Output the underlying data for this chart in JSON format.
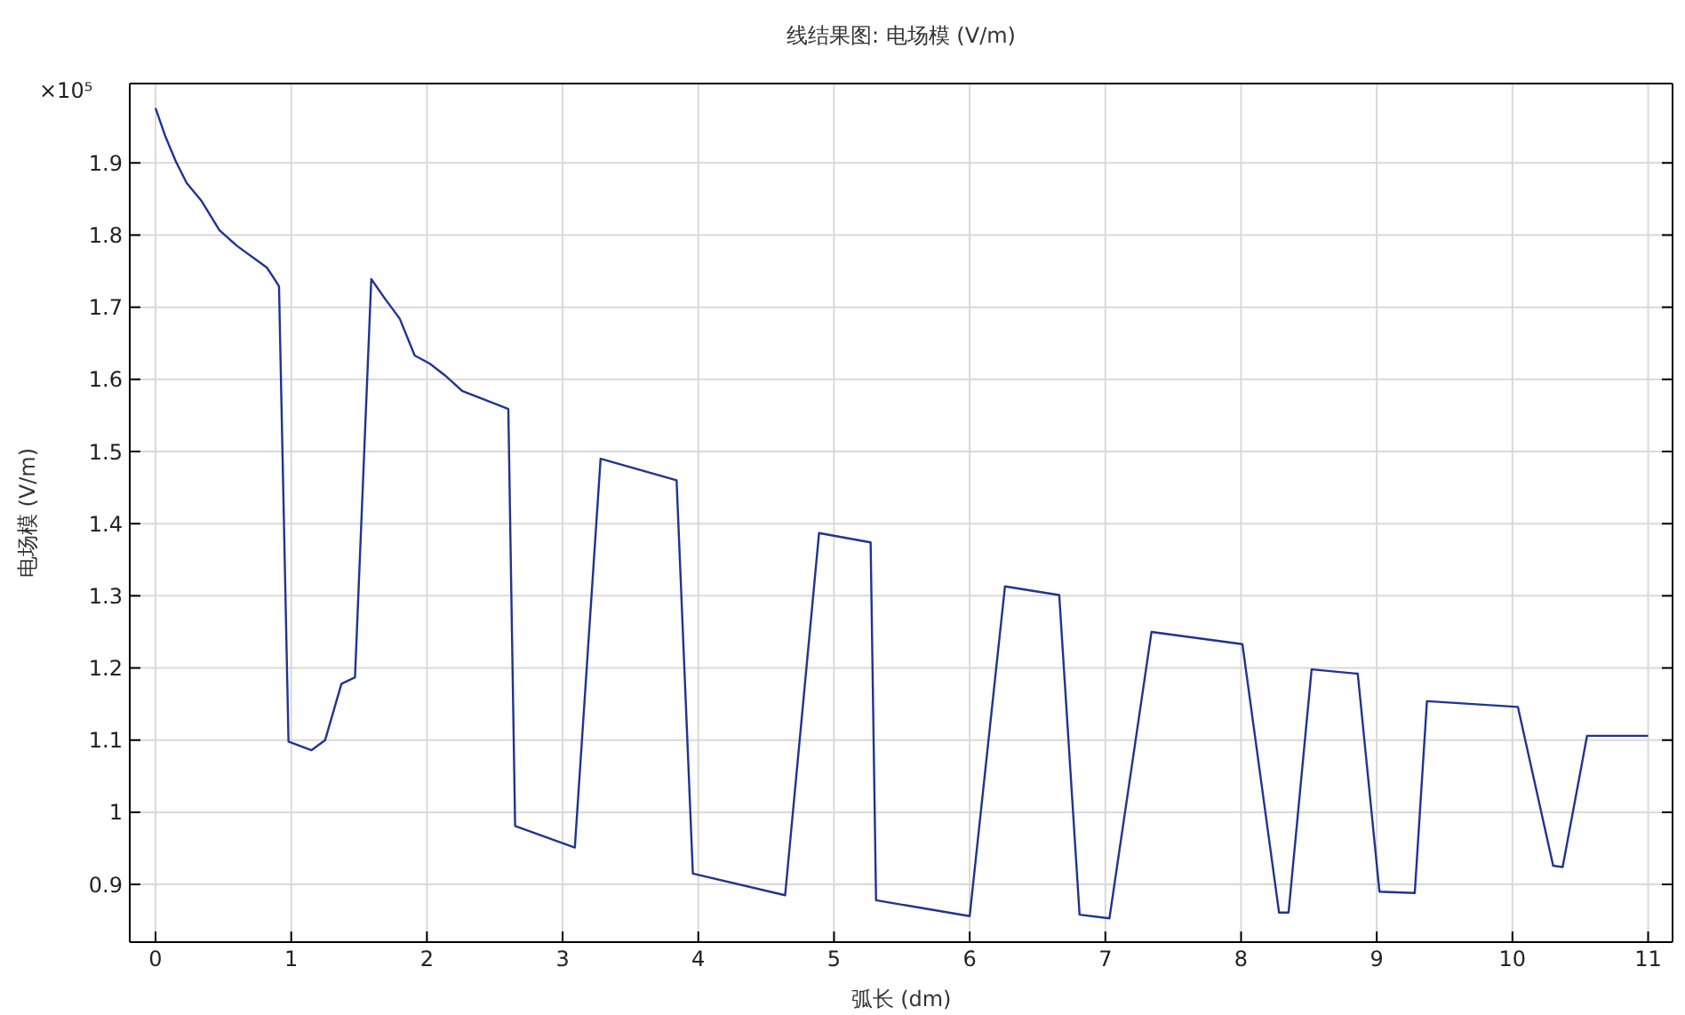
{
  "chart_data": {
    "type": "line",
    "title": "线结果图: 电场模 (V/m)",
    "xlabel": "弧长 (dm)",
    "ylabel": "电场模 (V/m)",
    "annotations": [
      "×10⁵"
    ],
    "x": [
      0,
      0.07,
      0.15,
      0.23,
      0.34,
      0.47,
      0.6,
      0.82,
      0.87,
      0.91,
      0.98,
      1.15,
      1.25,
      1.37,
      1.47,
      1.59,
      1.69,
      1.8,
      1.91,
      2.02,
      2.13,
      2.26,
      2.6,
      2.65,
      3.09,
      3.28,
      3.84,
      3.96,
      4.64,
      4.89,
      5.27,
      5.31,
      6.0,
      6.26,
      6.66,
      6.81,
      7.03,
      7.34,
      8.01,
      8.28,
      8.35,
      8.52,
      8.86,
      9.02,
      9.28,
      9.37,
      10.04,
      10.3,
      10.37,
      10.55,
      11.0
    ],
    "series": [
      {
        "color": "#1f3490",
        "values": [
          1.976,
          1.938,
          1.902,
          1.872,
          1.847,
          1.807,
          1.785,
          1.755,
          1.741,
          1.729,
          1.098,
          1.086,
          1.1,
          1.178,
          1.187,
          1.739,
          1.712,
          1.684,
          1.633,
          1.622,
          1.606,
          1.584,
          1.559,
          0.981,
          0.951,
          1.49,
          1.46,
          0.915,
          0.885,
          1.387,
          1.374,
          0.878,
          0.856,
          1.313,
          1.301,
          0.858,
          0.853,
          1.25,
          1.233,
          0.861,
          0.861,
          1.198,
          1.192,
          0.89,
          0.888,
          1.154,
          1.146,
          0.926,
          0.924,
          1.106,
          1.106
        ]
      }
    ],
    "xlim": [
      -0.19,
      11.18
    ],
    "ylim": [
      0.82,
      2.01
    ],
    "xticks": [
      0,
      1,
      2,
      3,
      4,
      5,
      6,
      7,
      8,
      9,
      10,
      11
    ],
    "yticks": [
      0.9,
      1,
      1.1,
      1.2,
      1.3,
      1.4,
      1.5,
      1.6,
      1.7,
      1.8,
      1.9
    ],
    "grid": true,
    "line_style": "solid"
  }
}
